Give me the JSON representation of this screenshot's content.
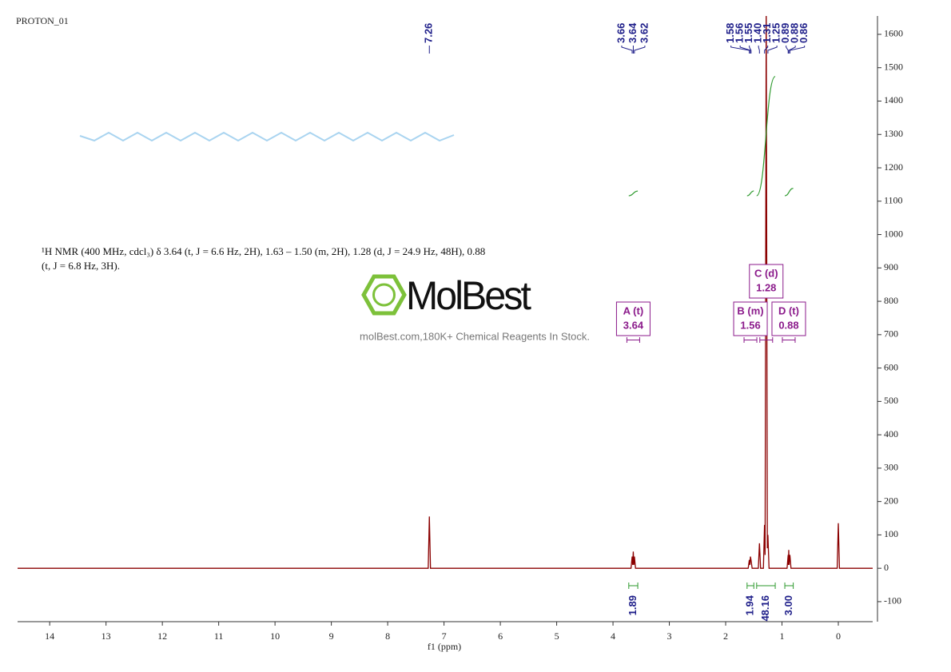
{
  "chart_data": {
    "type": "line",
    "title": "PROTON_01",
    "x": [
      14.57,
      7.28,
      7.26,
      7.24,
      3.68,
      3.66,
      3.65,
      3.64,
      3.63,
      3.62,
      3.6,
      1.6,
      1.58,
      1.57,
      1.56,
      1.55,
      1.53,
      1.42,
      1.4,
      1.38,
      1.33,
      1.31,
      1.3,
      1.28,
      1.26,
      1.25,
      1.23,
      0.91,
      0.89,
      0.885,
      0.88,
      0.875,
      0.86,
      0.84,
      0.02,
      0,
      -0.02,
      -0.61
    ],
    "values": [
      0,
      0,
      155,
      0,
      0,
      35,
      10,
      50,
      10,
      35,
      0,
      0,
      25,
      10,
      35,
      25,
      0,
      0,
      75,
      0,
      0,
      130,
      40,
      1700,
      60,
      100,
      0,
      0,
      40,
      10,
      55,
      10,
      40,
      0,
      0,
      135,
      0,
      0
    ],
    "color": "#8b0000",
    "xlim": [
      14.57,
      -0.61
    ],
    "xticks": [
      14,
      13,
      12,
      11,
      10,
      9,
      8,
      7,
      6,
      5,
      4,
      3,
      2,
      1,
      0
    ],
    "xlabel": "f1  (ppm)",
    "ylim": [
      -160,
      1655
    ],
    "yticks": [
      -100,
      0,
      100,
      200,
      300,
      400,
      500,
      600,
      700,
      800,
      900,
      1000,
      1100,
      1200,
      1300,
      1400,
      1500,
      1600
    ],
    "peak_labels": [
      7.26,
      3.66,
      3.64,
      3.62,
      1.58,
      1.56,
      1.55,
      {
        "value": 1.4,
        "label": "1.40"
      },
      1.31,
      1.25,
      0.89,
      0.88,
      0.86
    ],
    "integrals": [
      {
        "range": [
          3.72,
          3.56
        ],
        "value": 1.89
      },
      {
        "range": [
          1.62,
          1.5
        ],
        "value": 1.94
      },
      {
        "range": [
          1.45,
          1.12
        ],
        "value": 48.16
      },
      {
        "range": [
          0.95,
          0.8
        ],
        "value": 3,
        "label": "3.00"
      }
    ],
    "multiplets": [
      {
        "name": "A (t)",
        "shift": 3.64
      },
      {
        "name": "B (m)",
        "shift": 1.56
      },
      {
        "name": "C (d)",
        "shift": 1.28
      },
      {
        "name": "D (t)",
        "shift": 0.88
      }
    ]
  },
  "description": "¹H NMR (400 MHz, cdcl₃) δ 3.64 (t, J = 6.6 Hz, 2H), 1.63 – 1.50 (m, 2H), 1.28 (d, J = 24.9 Hz, 48H), 0.88 (t, J = 6.8 Hz, 3H).",
  "watermark": {
    "brand": "MolBest",
    "tagline": "molBest.com,180K+ Chemical Reagents In Stock."
  }
}
